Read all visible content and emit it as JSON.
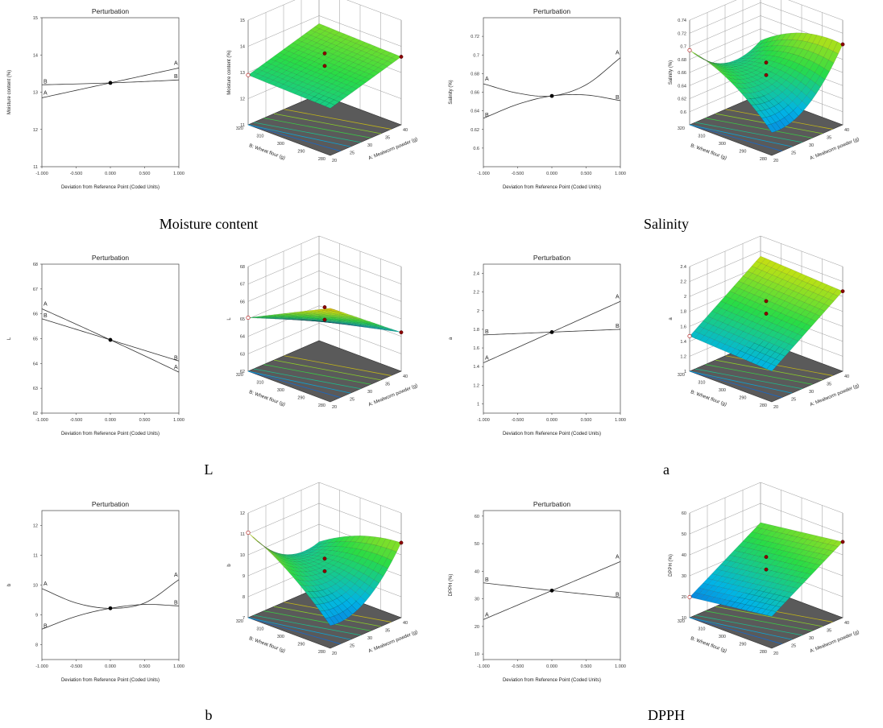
{
  "figure": {
    "perturbation_title": "Perturbation",
    "perturbation_xlabel": "Deviation from Reference Point (Coded Units)",
    "surface_xlabel": "A: Mealworm powder (g)",
    "surface_ylabel": "B: Wheat flour (g)"
  },
  "chart_data": [
    {
      "type": "line",
      "caption": "Moisture content",
      "title": "Perturbation",
      "xlabel": "Deviation from Reference Point (Coded Units)",
      "ylabel": "Moisture content (%)",
      "xlim": [
        -1,
        1
      ],
      "xticks": [
        -1,
        -0.5,
        0,
        0.5,
        1
      ],
      "xtick_labels": [
        "-1.000",
        "-0.500",
        "0.000",
        "0.500",
        "1.000"
      ],
      "ylim": [
        11,
        15
      ],
      "yticks": [
        11,
        12,
        13,
        14,
        15
      ],
      "series": [
        {
          "name": "A",
          "x": [
            -1,
            0,
            1
          ],
          "y": [
            12.85,
            13.25,
            13.65
          ]
        },
        {
          "name": "B",
          "x": [
            -1,
            0,
            1
          ],
          "y": [
            13.2,
            13.25,
            13.33
          ]
        }
      ],
      "reference_point": [
        0,
        13.25
      ],
      "surface": {
        "zlabel": "Moisture content (%)",
        "zlim": [
          11,
          15
        ],
        "zticks": [
          11,
          12,
          13,
          14,
          15
        ],
        "alim": [
          20,
          40
        ],
        "aticks": [
          20,
          25,
          30,
          35,
          40
        ],
        "blim": [
          280,
          320
        ],
        "bticks": [
          280,
          290,
          300,
          310,
          320
        ],
        "b0": 13.25,
        "b1": 0.4,
        "b2": 0.05,
        "b11": 0,
        "b22": 0,
        "b12": 0
      }
    },
    {
      "type": "line",
      "caption": "Salinity",
      "title": "Perturbation",
      "xlabel": "Deviation from Reference Point (Coded Units)",
      "ylabel": "Salinity (%)",
      "xlim": [
        -1,
        1
      ],
      "xticks": [
        -1,
        -0.5,
        0,
        0.5,
        1
      ],
      "xtick_labels": [
        "-1.000",
        "-0.500",
        "0.000",
        "0.500",
        "1.000"
      ],
      "ylim": [
        0.58,
        0.74
      ],
      "yticks": [
        0.6,
        0.62,
        0.64,
        0.66,
        0.68,
        0.7,
        0.72
      ],
      "series": [
        {
          "name": "A",
          "x": [
            -1,
            -0.5,
            0,
            0.5,
            1
          ],
          "y": [
            0.669,
            0.659,
            0.656,
            0.668,
            0.697
          ]
        },
        {
          "name": "B",
          "x": [
            -1,
            -0.5,
            0,
            0.5,
            1
          ],
          "y": [
            0.632,
            0.647,
            0.656,
            0.657,
            0.651
          ]
        }
      ],
      "reference_point": [
        0,
        0.656
      ],
      "surface": {
        "zlabel": "Salinity (%)",
        "zlim": [
          0.58,
          0.74
        ],
        "zticks": [
          0.6,
          0.62,
          0.64,
          0.66,
          0.68,
          0.7,
          0.72,
          0.74
        ],
        "alim": [
          20,
          40
        ],
        "aticks": [
          20,
          25,
          30,
          35,
          40
        ],
        "blim": [
          280,
          320
        ],
        "bticks": [
          280,
          290,
          300,
          310,
          320
        ],
        "b0": 0.656,
        "b1": 0.014,
        "b2": 0.0095,
        "b11": 0.027,
        "b22": -0.0145,
        "b12": -0.03
      }
    },
    {
      "type": "line",
      "caption": "L",
      "title": "Perturbation",
      "xlabel": "Deviation from Reference Point (Coded Units)",
      "ylabel": "L",
      "xlim": [
        -1,
        1
      ],
      "xticks": [
        -1,
        -0.5,
        0,
        0.5,
        1
      ],
      "xtick_labels": [
        "-1.000",
        "-0.500",
        "0.000",
        "0.500",
        "1.000"
      ],
      "ylim": [
        62,
        68
      ],
      "yticks": [
        62,
        63,
        64,
        65,
        66,
        67,
        68
      ],
      "series": [
        {
          "name": "A",
          "x": [
            -1,
            0,
            1
          ],
          "y": [
            66.2,
            64.95,
            63.65
          ]
        },
        {
          "name": "B",
          "x": [
            -1,
            0,
            1
          ],
          "y": [
            65.8,
            64.95,
            64.1
          ]
        }
      ],
      "reference_point": [
        0,
        64.95
      ],
      "surface": {
        "zlabel": "L",
        "zlim": [
          62,
          68
        ],
        "zticks": [
          62,
          63,
          64,
          65,
          66,
          67,
          68
        ],
        "alim": [
          20,
          40
        ],
        "aticks": [
          20,
          25,
          30,
          35,
          40
        ],
        "blim": [
          280,
          320
        ],
        "bticks": [
          280,
          290,
          300,
          310,
          320
        ],
        "b0": 64.95,
        "b1": -1.27,
        "b2": -0.85,
        "b11": 0,
        "b22": 0,
        "b12": 0.3
      }
    },
    {
      "type": "line",
      "caption": "a",
      "title": "Perturbation",
      "xlabel": "Deviation from Reference Point (Coded Units)",
      "ylabel": "a",
      "xlim": [
        -1,
        1
      ],
      "xticks": [
        -1,
        -0.5,
        0,
        0.5,
        1
      ],
      "xtick_labels": [
        "-1.000",
        "-0.500",
        "0.000",
        "0.500",
        "1.000"
      ],
      "ylim": [
        0.9,
        2.5
      ],
      "yticks": [
        1,
        1.2,
        1.4,
        1.6,
        1.8,
        2,
        2.2,
        2.4
      ],
      "series": [
        {
          "name": "A",
          "x": [
            -1,
            0,
            1
          ],
          "y": [
            1.44,
            1.77,
            2.1
          ]
        },
        {
          "name": "B",
          "x": [
            -1,
            0,
            1
          ],
          "y": [
            1.74,
            1.77,
            1.8
          ]
        }
      ],
      "reference_point": [
        0,
        1.77
      ],
      "surface": {
        "zlabel": "a",
        "zlim": [
          1,
          2.4
        ],
        "zticks": [
          1,
          1.2,
          1.4,
          1.6,
          1.8,
          2,
          2.2,
          2.4
        ],
        "alim": [
          20,
          40
        ],
        "aticks": [
          20,
          25,
          30,
          35,
          40
        ],
        "blim": [
          280,
          320
        ],
        "bticks": [
          280,
          290,
          300,
          310,
          320
        ],
        "b0": 1.77,
        "b1": 0.33,
        "b2": 0.03,
        "b11": 0,
        "b22": 0,
        "b12": 0
      }
    },
    {
      "type": "line",
      "caption": "b",
      "title": "Perturbation",
      "xlabel": "Deviation from Reference Point (Coded Units)",
      "ylabel": "b",
      "xlim": [
        -1,
        1
      ],
      "xticks": [
        -1,
        -0.5,
        0,
        0.5,
        1
      ],
      "xtick_labels": [
        "-1.000",
        "-0.500",
        "0.000",
        "0.500",
        "1.000"
      ],
      "ylim": [
        7.5,
        12.5
      ],
      "yticks": [
        8,
        9,
        10,
        11,
        12
      ],
      "series": [
        {
          "name": "A",
          "x": [
            -1,
            -0.5,
            0,
            0.5,
            1
          ],
          "y": [
            9.88,
            9.4,
            9.22,
            9.4,
            10.18
          ]
        },
        {
          "name": "B",
          "x": [
            -1,
            -0.5,
            0,
            0.5,
            1
          ],
          "y": [
            8.52,
            8.95,
            9.22,
            9.35,
            9.3
          ]
        }
      ],
      "reference_point": [
        0,
        9.22
      ],
      "surface": {
        "zlabel": "b",
        "zlim": [
          7,
          12
        ],
        "zticks": [
          7,
          8,
          9,
          10,
          11,
          12
        ],
        "alim": [
          20,
          40
        ],
        "aticks": [
          20,
          25,
          30,
          35,
          40
        ],
        "blim": [
          280,
          320
        ],
        "bticks": [
          280,
          290,
          300,
          310,
          320
        ],
        "b0": 9.22,
        "b1": 0.15,
        "b2": 0.39,
        "b11": 0.81,
        "b22": -0.31,
        "b12": -1.1
      }
    },
    {
      "type": "line",
      "caption": "DPPH",
      "title": "Perturbation",
      "xlabel": "Deviation from Reference Point (Coded Units)",
      "ylabel": "DPPH (%)",
      "xlim": [
        -1,
        1
      ],
      "xticks": [
        -1,
        -0.5,
        0,
        0.5,
        1
      ],
      "xtick_labels": [
        "-1.000",
        "-0.500",
        "0.000",
        "0.500",
        "1.000"
      ],
      "ylim": [
        8,
        62
      ],
      "yticks": [
        10,
        20,
        30,
        40,
        50,
        60
      ],
      "series": [
        {
          "name": "A",
          "x": [
            -1,
            0,
            1
          ],
          "y": [
            22.5,
            33,
            43.5
          ]
        },
        {
          "name": "B",
          "x": [
            -1,
            0,
            1
          ],
          "y": [
            35.8,
            33,
            30.4
          ]
        }
      ],
      "reference_point": [
        0,
        33
      ],
      "surface": {
        "zlabel": "DPPH (%)",
        "zlim": [
          10,
          60
        ],
        "zticks": [
          10,
          20,
          30,
          40,
          50,
          60
        ],
        "alim": [
          20,
          40
        ],
        "aticks": [
          20,
          25,
          30,
          35,
          40
        ],
        "blim": [
          280,
          320
        ],
        "bticks": [
          280,
          290,
          300,
          310,
          320
        ],
        "b0": 33,
        "b1": 10.5,
        "b2": -2.7,
        "b11": 0,
        "b22": 0,
        "b12": 0
      }
    }
  ]
}
